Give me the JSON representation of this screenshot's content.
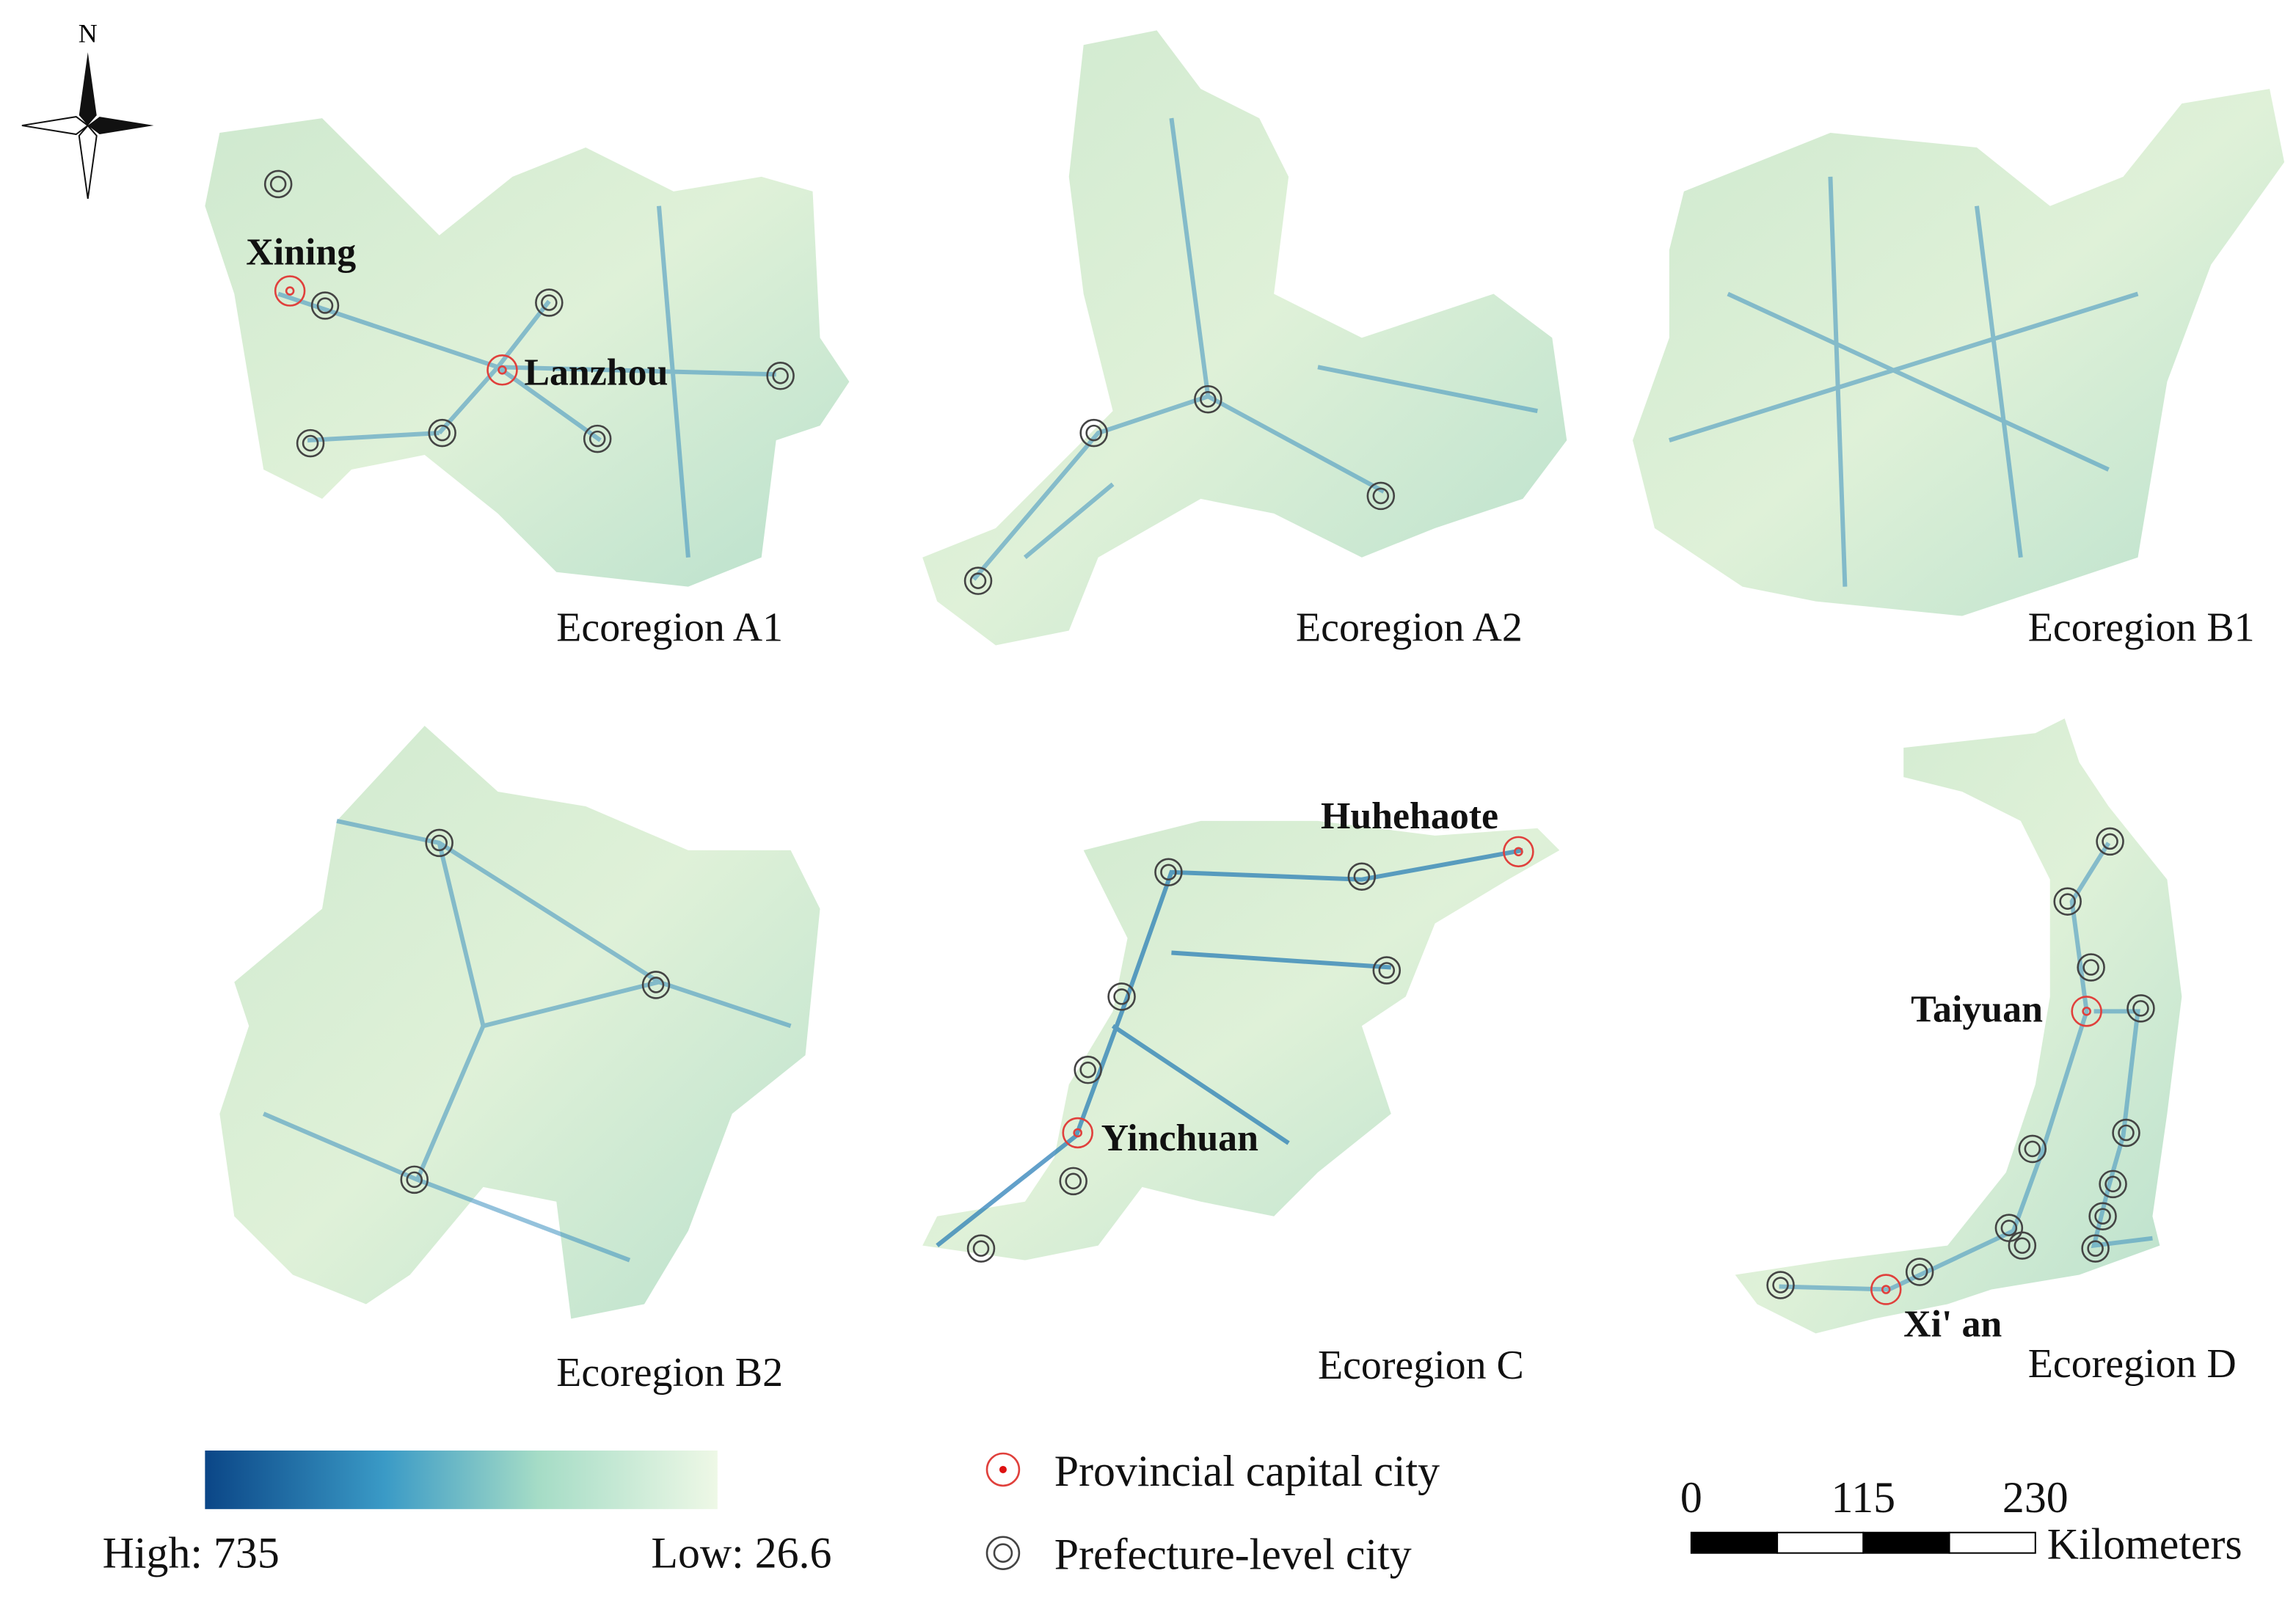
{
  "north": "N",
  "regions": [
    "Ecoregion A1",
    "Ecoregion A2",
    "Ecoregion B1",
    "Ecoregion B2",
    "Ecoregion C",
    "Ecoregion D"
  ],
  "cities": [
    "Xining",
    "Lanzhou",
    "Huhehaote",
    "Yinchuan",
    "Taiyuan",
    "Xi' an"
  ],
  "legend": {
    "high": "High: 735",
    "low": "Low: 26.6",
    "capital": "Provincial capital city",
    "prefecture": "Prefecture-level city"
  },
  "scale": {
    "ticks": [
      0,
      115,
      230
    ],
    "unit": "Kilometers"
  }
}
